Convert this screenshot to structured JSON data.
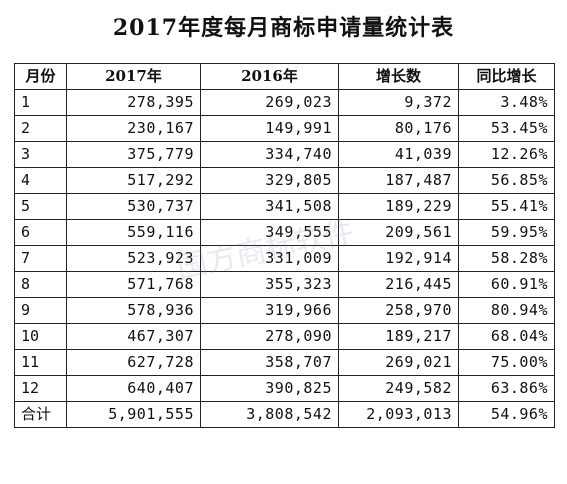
{
  "title": "2017年度每月商标申请量统计表",
  "headers": [
    "月份",
    "2017年",
    "2016年",
    "增长数",
    "同比增长"
  ],
  "rows": [
    [
      "1",
      "278,395",
      "269,023",
      "9,372",
      "3.48%"
    ],
    [
      "2",
      "230,167",
      "149,991",
      "80,176",
      "53.45%"
    ],
    [
      "3",
      "375,779",
      "334,740",
      "41,039",
      "12.26%"
    ],
    [
      "4",
      "517,292",
      "329,805",
      "187,487",
      "56.85%"
    ],
    [
      "5",
      "530,737",
      "341,508",
      "189,229",
      "55.41%"
    ],
    [
      "6",
      "559,116",
      "349,555",
      "209,561",
      "59.95%"
    ],
    [
      "7",
      "523,923",
      "331,009",
      "192,914",
      "58.28%"
    ],
    [
      "8",
      "571,768",
      "355,323",
      "216,445",
      "60.91%"
    ],
    [
      "9",
      "578,936",
      "319,966",
      "258,970",
      "80.94%"
    ],
    [
      "10",
      "467,307",
      "278,090",
      "189,217",
      "68.04%"
    ],
    [
      "11",
      "627,728",
      "358,707",
      "269,021",
      "75.00%"
    ],
    [
      "12",
      "640,407",
      "390,825",
      "249,582",
      "63.86%"
    ]
  ],
  "total": [
    "合计",
    "5,901,555",
    "3,808,542",
    "2,093,013",
    "54.96%"
  ],
  "watermark": "国方商标软件"
}
